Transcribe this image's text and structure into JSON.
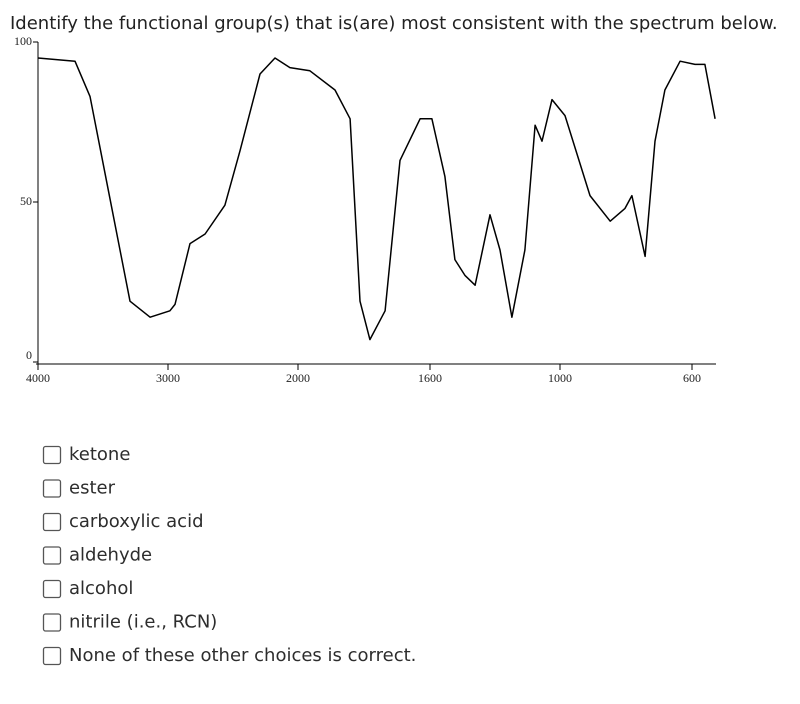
{
  "question": "Identify the functional group(s) that is(are) most consistent with the spectrum below.",
  "chart_data": {
    "type": "line",
    "x": [
      4000,
      3715,
      3600,
      3446,
      3292,
      3138,
      2985,
      2946,
      2831,
      2715,
      2562,
      2446,
      2292,
      2177,
      2062,
      1964,
      1888,
      1842,
      1812,
      1782,
      1736,
      1691,
      1630,
      1591,
      1531,
      1485,
      1438,
      1392,
      1323,
      1277,
      1222,
      1162,
      1115,
      1083,
      1037,
      985,
      909,
      848,
      803,
      782,
      742,
      712,
      682,
      636,
      591,
      561,
      530
    ],
    "series": [
      {
        "color": "#000000",
        "values": [
          95,
          94,
          83,
          51,
          19,
          14,
          16,
          18,
          37,
          40,
          49,
          66,
          90,
          95,
          92,
          91,
          85,
          76,
          19,
          7,
          16,
          63,
          76,
          76,
          58,
          32,
          27,
          24,
          46,
          35,
          14,
          35,
          74,
          69,
          82,
          77,
          52,
          44,
          48,
          52,
          33,
          69,
          85,
          94,
          93,
          93,
          76
        ]
      }
    ],
    "xlim": [
      4000,
      530
    ],
    "ylim": [
      0,
      100
    ],
    "xticks": [
      4000,
      3000,
      2000,
      1600,
      1000,
      600
    ],
    "yticks": [
      0,
      50,
      100
    ]
  },
  "options": [
    "ketone",
    "ester",
    "carboxylic acid",
    "aldehyde",
    "alcohol",
    "nitrile (i.e., RCN)",
    "None of these other choices is correct."
  ]
}
